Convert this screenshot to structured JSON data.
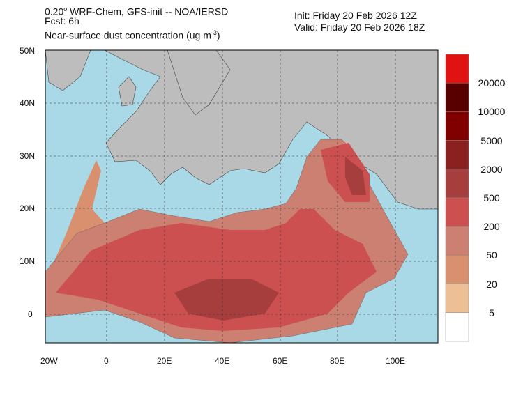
{
  "header": {
    "model_prefix": "0.20",
    "model_degree": "o",
    "model_rest": " WRF-Chem, GFS-init -- NOA/IERSD",
    "forecast": "Fcst: 6h",
    "variable": "Near-surface dust concentration (ug m",
    "variable_exp": "-3",
    "variable_close": ")",
    "init": "Init: Friday 20 Feb 2026  12Z",
    "valid": "Valid: Friday 20 Feb 2026  18Z"
  },
  "lat_labels": [
    "50N",
    "40N",
    "30N",
    "20N",
    "10N",
    "0"
  ],
  "lon_labels": [
    "20W",
    "0",
    "20E",
    "40E",
    "60E",
    "80E",
    "100E"
  ],
  "colorbar": {
    "labels": [
      "20000",
      "10000",
      "5000",
      "2000",
      "500",
      "200",
      "50",
      "20",
      "5"
    ],
    "colors": [
      "#e01212",
      "#580000",
      "#800000",
      "#8a2020",
      "#a63e3e",
      "#cc5050",
      "#cc8072",
      "#d8906e",
      "#ecc094",
      "#ffffff"
    ]
  },
  "colors": {
    "ocean": "#a9d8e6",
    "land": "#bdbdbd"
  }
}
